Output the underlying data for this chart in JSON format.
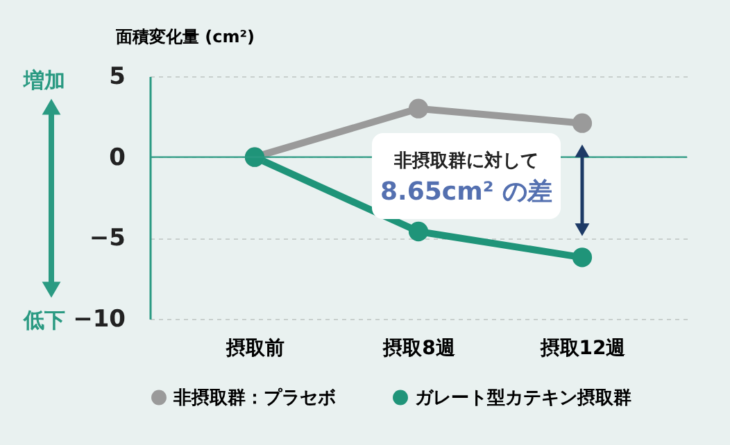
{
  "chart_data": {
    "type": "line",
    "ylabel": "面積変化量 (cm²)",
    "categories": [
      "摂取前",
      "摂取8週",
      "摂取12週"
    ],
    "series": [
      {
        "name": "非摂取群：プラセボ",
        "color": "#9a9a9a",
        "values": [
          0,
          3.0,
          2.1
        ]
      },
      {
        "name": "ガレート型カテキン摂取群",
        "color": "#1f9479",
        "values": [
          0,
          -4.6,
          -6.2
        ]
      }
    ],
    "ylim": [
      -10,
      5
    ],
    "yticks": [
      -10,
      -5,
      0,
      5
    ],
    "grid": "y",
    "legend": "bottom",
    "marker": "circle",
    "line_style": "solid",
    "ref_lines": [
      {
        "axis": "y",
        "value": 0,
        "color": "#2a9a82"
      }
    ],
    "annotations": [
      "増加",
      "低下",
      "非摂取群に対して",
      "8.65cm² の差"
    ]
  }
}
